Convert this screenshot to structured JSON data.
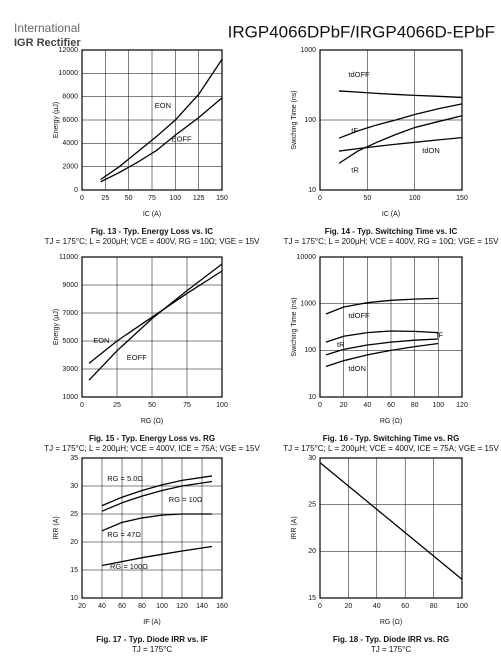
{
  "header": {
    "logo_line1": "International",
    "logo_line2": "IGR Rectifier",
    "title": "IRGP4066DPbF/IRGP4066D-EPbF"
  },
  "chart_data": [
    {
      "type": "line",
      "title": "Fig. 13 - Typ. Energy Loss vs. IC",
      "subtitle": "TJ = 175°C; L = 200µH; VCE = 400V, RG = 10Ω; VGE = 15V",
      "xlabel": "IC (A)",
      "ylabel": "Energy (µJ)",
      "x": [
        20,
        40,
        60,
        80,
        100,
        125,
        150
      ],
      "series": [
        {
          "name": "EON",
          "color": "#000000",
          "values": [
            900,
            2000,
            3300,
            4600,
            6000,
            8200,
            11200
          ]
        },
        {
          "name": "EOFF",
          "color": "#000000",
          "values": [
            700,
            1500,
            2400,
            3400,
            4700,
            6200,
            7900
          ]
        }
      ],
      "xlim": [
        0,
        150
      ],
      "ylim": [
        0,
        12000
      ],
      "xticks": [
        0,
        25,
        50,
        75,
        100,
        125,
        150
      ],
      "yticks": [
        0,
        2000,
        4000,
        6000,
        8000,
        10000,
        12000
      ],
      "log_y": false,
      "grid": true
    },
    {
      "type": "line",
      "title": "Fig. 14 - Typ. Switching Time vs. IC",
      "subtitle": "TJ = 175°C; L = 200µH; VCE = 400V, RG = 10Ω; VGE = 15V",
      "xlabel": "IC (A)",
      "ylabel": "Swiching Time (ns)",
      "x": [
        20,
        40,
        60,
        80,
        100,
        125,
        150
      ],
      "series": [
        {
          "name": "tdOFF",
          "color": "#000000",
          "values": [
            260,
            250,
            240,
            232,
            225,
            218,
            210
          ]
        },
        {
          "name": "tF",
          "color": "#000000",
          "values": [
            55,
            70,
            85,
            100,
            120,
            145,
            170
          ]
        },
        {
          "name": "tdON",
          "color": "#000000",
          "values": [
            36,
            39,
            42,
            45,
            48,
            52,
            56
          ]
        },
        {
          "name": "tR",
          "color": "#000000",
          "values": [
            24,
            36,
            48,
            62,
            78,
            95,
            115
          ]
        }
      ],
      "xlim": [
        0,
        150
      ],
      "ylim": [
        10,
        1000
      ],
      "xticks": [
        0,
        50,
        100,
        150
      ],
      "yticks": [
        10,
        100,
        1000
      ],
      "log_y": true,
      "grid": true
    },
    {
      "type": "line",
      "title": "Fig. 15 - Typ. Energy Loss vs. RG",
      "subtitle": "TJ = 175°C; L = 200µH; VCE = 400V, ICE = 75A; VGE = 15V",
      "xlabel": "RG (Ω)",
      "ylabel": "Energy (µJ)",
      "x": [
        5,
        25,
        50,
        75,
        100
      ],
      "series": [
        {
          "name": "EON",
          "color": "#000000",
          "values": [
            3400,
            5000,
            6700,
            8400,
            10000
          ]
        },
        {
          "name": "EOFF",
          "color": "#000000",
          "values": [
            2200,
            4300,
            6600,
            8600,
            10500
          ]
        }
      ],
      "xlim": [
        0,
        100
      ],
      "ylim": [
        1000,
        11000
      ],
      "xticks": [
        0,
        25,
        50,
        75,
        100
      ],
      "yticks": [
        1000,
        3000,
        5000,
        7000,
        9000,
        11000
      ],
      "log_y": false,
      "grid": true
    },
    {
      "type": "line",
      "title": "Fig. 16 - Typ. Switching Time vs. RG",
      "subtitle": "TJ = 175°C; L = 200µH; VCE = 400V, ICE = 75A; VGE = 15V",
      "xlabel": "RG (Ω)",
      "ylabel": "Swiching Time (ns)",
      "x": [
        5,
        20,
        40,
        60,
        80,
        100
      ],
      "series": [
        {
          "name": "tdOFF",
          "color": "#000000",
          "values": [
            600,
            850,
            1050,
            1180,
            1250,
            1300
          ]
        },
        {
          "name": "tF",
          "color": "#000000",
          "values": [
            150,
            200,
            240,
            260,
            255,
            240
          ]
        },
        {
          "name": "tR",
          "color": "#000000",
          "values": [
            80,
            105,
            130,
            150,
            165,
            175
          ]
        },
        {
          "name": "tdON",
          "color": "#000000",
          "values": [
            45,
            60,
            80,
            100,
            120,
            140
          ]
        }
      ],
      "xlim": [
        0,
        120
      ],
      "ylim": [
        10,
        10000
      ],
      "xticks": [
        0,
        20,
        40,
        60,
        80,
        100,
        120
      ],
      "yticks": [
        10,
        100,
        1000,
        10000
      ],
      "log_y": true,
      "grid": true
    },
    {
      "type": "line",
      "title": "Fig. 17 - Typ. Diode IRR vs. IF",
      "subtitle": "TJ = 175°C",
      "xlabel": "IF (A)",
      "ylabel": "IRR (A)",
      "x": [
        40,
        60,
        80,
        100,
        120,
        150
      ],
      "series": [
        {
          "name": "RG = 5.0Ω",
          "color": "#000000",
          "values": [
            26.5,
            28,
            29.2,
            30.2,
            31,
            31.8
          ]
        },
        {
          "name": "RG = 10Ω",
          "color": "#000000",
          "values": [
            25.5,
            27,
            28.2,
            29.2,
            30,
            30.8
          ]
        },
        {
          "name": "RG = 47Ω",
          "color": "#000000",
          "values": [
            22,
            23.5,
            24.3,
            24.8,
            25,
            25
          ]
        },
        {
          "name": "RG = 100Ω",
          "color": "#000000",
          "values": [
            15.8,
            16.5,
            17.2,
            17.8,
            18.4,
            19.2
          ]
        }
      ],
      "xlim": [
        20,
        160
      ],
      "ylim": [
        10,
        35
      ],
      "xticks": [
        20,
        40,
        60,
        80,
        100,
        120,
        140,
        160
      ],
      "yticks": [
        10,
        15,
        20,
        25,
        30,
        35
      ],
      "log_y": false,
      "grid": true
    },
    {
      "type": "line",
      "title": "Fig. 18 - Typ. Diode IRR vs. RG",
      "subtitle": "TJ = 175°C",
      "xlabel": "RG (Ω)",
      "ylabel": "IRR (A)",
      "x": [
        0,
        20,
        40,
        60,
        80,
        100
      ],
      "series": [
        {
          "name": "IRR",
          "color": "#000000",
          "values": [
            29.5,
            27,
            24.5,
            22,
            19.5,
            17
          ]
        }
      ],
      "xlim": [
        0,
        100
      ],
      "ylim": [
        15,
        30
      ],
      "xticks": [
        0,
        20,
        40,
        60,
        80,
        100
      ],
      "yticks": [
        15,
        20,
        25,
        30
      ],
      "log_y": false,
      "grid": true
    }
  ]
}
